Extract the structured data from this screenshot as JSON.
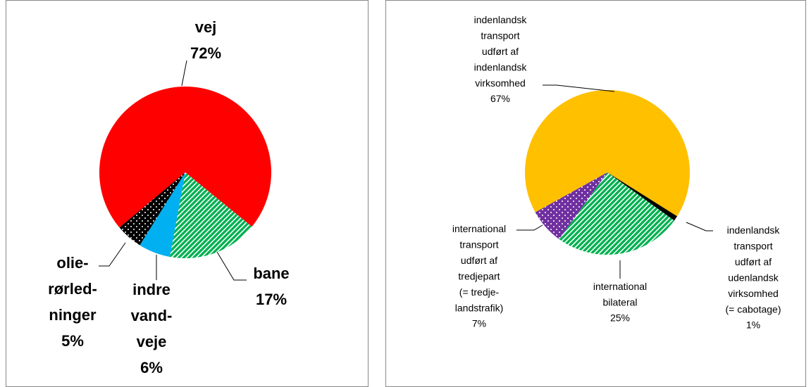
{
  "chart_data": [
    {
      "type": "pie",
      "categories": [
        "vej",
        "bane",
        "indre\nvand-\nveje",
        "olie-\nrørled-\nninger"
      ],
      "values": [
        72,
        17,
        6,
        5
      ],
      "value_labels": [
        "72%",
        "17%",
        "6%",
        "5%"
      ],
      "colors": [
        "#ff0000",
        "#00b050",
        "#00b0f0",
        "#000000"
      ],
      "patterns": [
        "solid",
        "stripes",
        "solid",
        "dots"
      ]
    },
    {
      "type": "pie",
      "categories": [
        "indenlandsk\ntransport\nudført af\nindenlandsk\nvirksomhed",
        "indenlandsk\ntransport\nudført af\nudenlandsk\nvirksomhed\n(= cabotage)",
        "international\nbilateral",
        "international\ntransport\nudført af\ntredjepart\n(= tredje-\nlandstrafik)"
      ],
      "values": [
        67,
        1,
        25,
        7
      ],
      "value_labels": [
        "67%",
        "1%",
        "25%",
        "7%"
      ],
      "colors": [
        "#ffc000",
        "#000000",
        "#00b050",
        "#7030a0"
      ],
      "patterns": [
        "solid",
        "solid",
        "stripes",
        "dots"
      ]
    }
  ]
}
